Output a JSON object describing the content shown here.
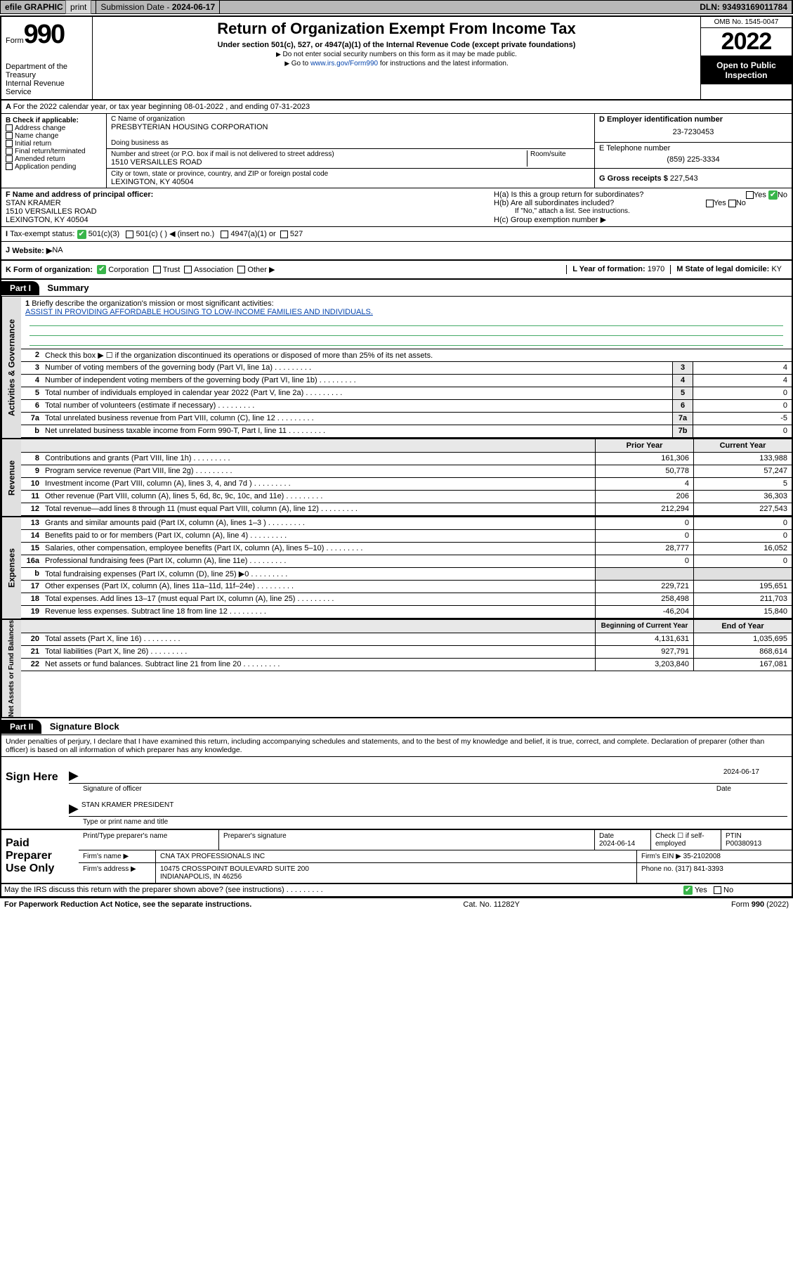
{
  "topbar": {
    "efile": "efile GRAPHIC",
    "print": "print",
    "sub_label": "Submission Date - ",
    "sub_date": "2024-06-17",
    "dln_label": "DLN: ",
    "dln": "93493169011784"
  },
  "header": {
    "form_label": "Form",
    "form_no": "990",
    "dept": "Department of the Treasury",
    "irs": "Internal Revenue Service",
    "title": "Return of Organization Exempt From Income Tax",
    "sub1": "Under section 501(c), 527, or 4947(a)(1) of the Internal Revenue Code (except private foundations)",
    "sub2": "Do not enter social security numbers on this form as it may be made public.",
    "sub3_pre": "Go to ",
    "sub3_link": "www.irs.gov/Form990",
    "sub3_post": " for instructions and the latest information.",
    "omb": "OMB No. 1545-0047",
    "year": "2022",
    "public": "Open to Public Inspection"
  },
  "rowA": "For the 2022 calendar year, or tax year beginning 08-01-2022   , and ending 07-31-2023",
  "colB": {
    "head": "B Check if applicable:",
    "items": [
      "Address change",
      "Name change",
      "Initial return",
      "Final return/terminated",
      "Amended return",
      "Application pending"
    ]
  },
  "colC": {
    "name_label": "C Name of organization",
    "name": "PRESBYTERIAN HOUSING CORPORATION",
    "dba": "Doing business as",
    "addr_label": "Number and street (or P.O. box if mail is not delivered to street address)",
    "room": "Room/suite",
    "addr": "1510 VERSAILLES ROAD",
    "city_label": "City or town, state or province, country, and ZIP or foreign postal code",
    "city": "LEXINGTON, KY  40504"
  },
  "colD": {
    "ein_label": "D Employer identification number",
    "ein": "23-7230453",
    "tel_label": "E Telephone number",
    "tel": "(859) 225-3334",
    "gross_label": "G Gross receipts $ ",
    "gross": "227,543"
  },
  "rowF": {
    "label": "F  Name and address of principal officer:",
    "name": "STAN KRAMER",
    "addr1": "1510 VERSAILLES ROAD",
    "addr2": "LEXINGTON, KY  40504"
  },
  "rowH": {
    "ha": "H(a)  Is this a group return for subordinates?",
    "hb": "H(b)  Are all subordinates included?",
    "hb_note": "If \"No,\" attach a list. See instructions.",
    "hc": "H(c)  Group exemption number ▶",
    "yes": "Yes",
    "no": "No"
  },
  "rowI": {
    "label": "Tax-exempt status:",
    "o1": "501(c)(3)",
    "o2": "501(c) (  ) ◀ (insert no.)",
    "o3": "4947(a)(1) or",
    "o4": "527"
  },
  "rowJ": {
    "label": "Website: ▶",
    "val": " NA"
  },
  "rowK": {
    "label": "K Form of organization:",
    "o1": "Corporation",
    "o2": "Trust",
    "o3": "Association",
    "o4": "Other ▶",
    "yl": "L Year of formation: ",
    "yv": "1970",
    "sl": "M State of legal domicile: ",
    "sv": "KY"
  },
  "part1": {
    "head": "Part I",
    "title": "Summary"
  },
  "mission": {
    "q": "Briefly describe the organization's mission or most significant activities:",
    "a": "ASSIST IN PROVIDING AFFORDABLE HOUSING TO LOW-INCOME FAMILIES AND INDIVIDUALS."
  },
  "sideA": "Activities & Governance",
  "sideR": "Revenue",
  "sideE": "Expenses",
  "sideN": "Net Assets or Fund Balances",
  "govlines": [
    {
      "n": "2",
      "t": "Check this box ▶ ☐  if the organization discontinued its operations or disposed of more than 25% of its net assets."
    },
    {
      "n": "3",
      "t": "Number of voting members of the governing body (Part VI, line 1a)",
      "rn": "3",
      "rv": "4"
    },
    {
      "n": "4",
      "t": "Number of independent voting members of the governing body (Part VI, line 1b)",
      "rn": "4",
      "rv": "4"
    },
    {
      "n": "5",
      "t": "Total number of individuals employed in calendar year 2022 (Part V, line 2a)",
      "rn": "5",
      "rv": "0"
    },
    {
      "n": "6",
      "t": "Total number of volunteers (estimate if necessary)",
      "rn": "6",
      "rv": "0"
    },
    {
      "n": "7a",
      "t": "Total unrelated business revenue from Part VIII, column (C), line 12",
      "rn": "7a",
      "rv": "-5"
    },
    {
      "n": "b",
      "t": "Net unrelated business taxable income from Form 990-T, Part I, line 11",
      "rn": "7b",
      "rv": "0"
    }
  ],
  "cols": {
    "prior": "Prior Year",
    "curr": "Current Year",
    "boy": "Beginning of Current Year",
    "eoy": "End of Year"
  },
  "rev": [
    {
      "n": "8",
      "t": "Contributions and grants (Part VIII, line 1h)",
      "p": "161,306",
      "c": "133,988"
    },
    {
      "n": "9",
      "t": "Program service revenue (Part VIII, line 2g)",
      "p": "50,778",
      "c": "57,247"
    },
    {
      "n": "10",
      "t": "Investment income (Part VIII, column (A), lines 3, 4, and 7d )",
      "p": "4",
      "c": "5"
    },
    {
      "n": "11",
      "t": "Other revenue (Part VIII, column (A), lines 5, 6d, 8c, 9c, 10c, and 11e)",
      "p": "206",
      "c": "36,303"
    },
    {
      "n": "12",
      "t": "Total revenue—add lines 8 through 11 (must equal Part VIII, column (A), line 12)",
      "p": "212,294",
      "c": "227,543"
    }
  ],
  "exp": [
    {
      "n": "13",
      "t": "Grants and similar amounts paid (Part IX, column (A), lines 1–3 )",
      "p": "0",
      "c": "0"
    },
    {
      "n": "14",
      "t": "Benefits paid to or for members (Part IX, column (A), line 4)",
      "p": "0",
      "c": "0"
    },
    {
      "n": "15",
      "t": "Salaries, other compensation, employee benefits (Part IX, column (A), lines 5–10)",
      "p": "28,777",
      "c": "16,052"
    },
    {
      "n": "16a",
      "t": "Professional fundraising fees (Part IX, column (A), line 11e)",
      "p": "0",
      "c": "0"
    },
    {
      "n": "b",
      "t": "Total fundraising expenses (Part IX, column (D), line 25) ▶0",
      "p": "",
      "c": ""
    },
    {
      "n": "17",
      "t": "Other expenses (Part IX, column (A), lines 11a–11d, 11f–24e)",
      "p": "229,721",
      "c": "195,651"
    },
    {
      "n": "18",
      "t": "Total expenses. Add lines 13–17 (must equal Part IX, column (A), line 25)",
      "p": "258,498",
      "c": "211,703"
    },
    {
      "n": "19",
      "t": "Revenue less expenses. Subtract line 18 from line 12",
      "p": "-46,204",
      "c": "15,840"
    }
  ],
  "net": [
    {
      "n": "20",
      "t": "Total assets (Part X, line 16)",
      "p": "4,131,631",
      "c": "1,035,695"
    },
    {
      "n": "21",
      "t": "Total liabilities (Part X, line 26)",
      "p": "927,791",
      "c": "868,614"
    },
    {
      "n": "22",
      "t": "Net assets or fund balances. Subtract line 21 from line 20",
      "p": "3,203,840",
      "c": "167,081"
    }
  ],
  "part2": {
    "head": "Part II",
    "title": "Signature Block"
  },
  "decl": "Under penalties of perjury, I declare that I have examined this return, including accompanying schedules and statements, and to the best of my knowledge and belief, it is true, correct, and complete. Declaration of preparer (other than officer) is based on all information of which preparer has any knowledge.",
  "sign": {
    "title": "Sign Here",
    "sig_label": "Signature of officer",
    "date": "2024-06-17",
    "date_label": "Date",
    "name": "STAN KRAMER  PRESIDENT",
    "name_label": "Type or print name and title"
  },
  "paid": {
    "title": "Paid Preparer Use Only",
    "h1": "Print/Type preparer's name",
    "h2": "Preparer's signature",
    "h3": "Date",
    "h3v": "2024-06-14",
    "h4": "Check ☐ if self-employed",
    "h5": "PTIN",
    "h5v": "P00380913",
    "firm_l": "Firm's name   ▶",
    "firm": "CNA TAX PROFESSIONALS INC",
    "ein_l": "Firm's EIN ▶",
    "ein": "35-2102008",
    "addr_l": "Firm's address ▶",
    "addr": "10475 CROSSPOINT BOULEVARD SUITE 200\nINDIANAPOLIS, IN  46256",
    "tel_l": "Phone no. ",
    "tel": "(317) 841-3393"
  },
  "may": "May the IRS discuss this return with the preparer shown above? (see instructions)",
  "ftr": {
    "l": "For Paperwork Reduction Act Notice, see the separate instructions.",
    "c": "Cat. No. 11282Y",
    "r": "Form 990 (2022)"
  },
  "colors": {
    "accent": "#39b54a",
    "link": "#0645ad",
    "grey": "#e0e0e0"
  }
}
